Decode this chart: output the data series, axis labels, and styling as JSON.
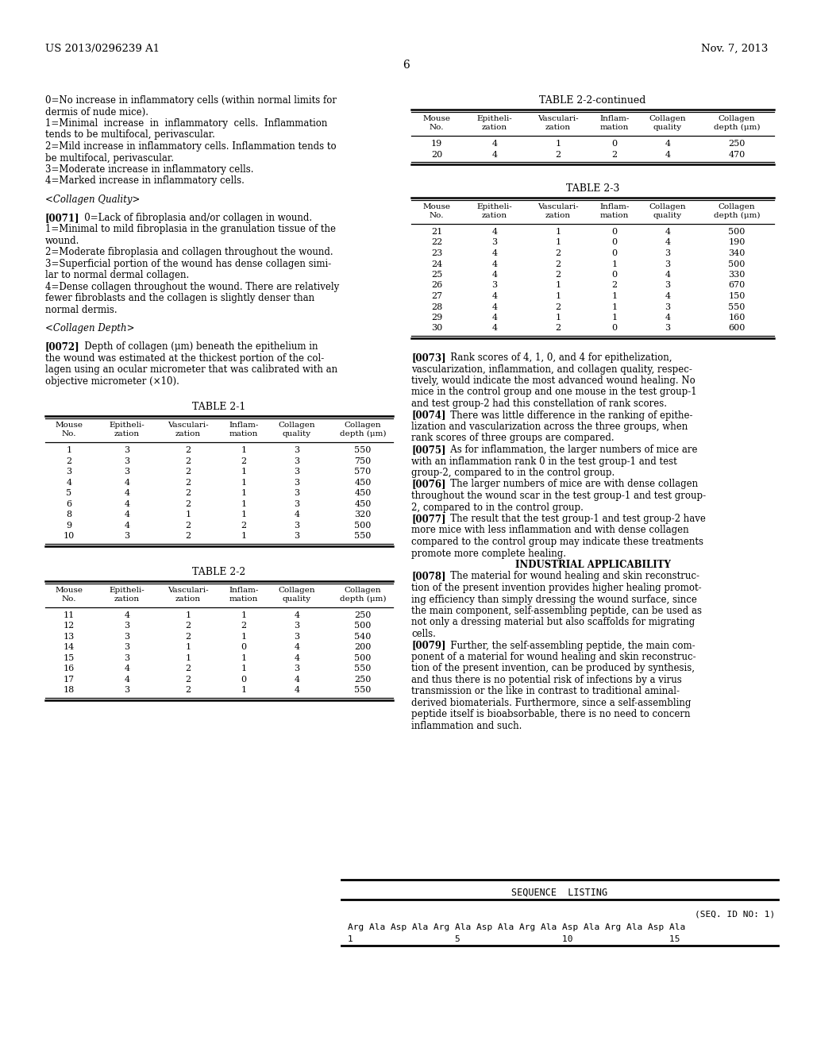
{
  "page_header_left": "US 2013/0296239 A1",
  "page_header_right": "Nov. 7, 2013",
  "page_number": "6",
  "bg_color": "#ffffff",
  "left_column_text": [
    {
      "text": "0=No increase in inflammatory cells (within normal limits for",
      "type": "normal"
    },
    {
      "text": "dermis of nude mice).",
      "type": "normal"
    },
    {
      "text": "1=Minimal  increase  in  inflammatory  cells.  Inflammation",
      "type": "normal"
    },
    {
      "text": "tends to be multifocal, perivascular.",
      "type": "normal"
    },
    {
      "text": "2=Mild increase in inflammatory cells. Inflammation tends to",
      "type": "normal"
    },
    {
      "text": "be multifocal, perivascular.",
      "type": "normal"
    },
    {
      "text": "3=Moderate increase in inflammatory cells.",
      "type": "normal"
    },
    {
      "text": "4=Marked increase in inflammatory cells.",
      "type": "normal"
    },
    {
      "text": "",
      "type": "gap"
    },
    {
      "text": "<Collagen Quality>",
      "type": "italic"
    },
    {
      "text": "",
      "type": "gap"
    },
    {
      "text": "[0071]",
      "type": "bracket",
      "rest": "   0=Lack of fibroplasia and/or collagen in wound."
    },
    {
      "text": "1=Minimal to mild fibroplasia in the granulation tissue of the",
      "type": "normal"
    },
    {
      "text": "wound.",
      "type": "normal"
    },
    {
      "text": "2=Moderate fibroplasia and collagen throughout the wound.",
      "type": "normal"
    },
    {
      "text": "3=Superficial portion of the wound has dense collagen simi-",
      "type": "normal"
    },
    {
      "text": "lar to normal dermal collagen.",
      "type": "normal"
    },
    {
      "text": "4=Dense collagen throughout the wound. There are relatively",
      "type": "normal"
    },
    {
      "text": "fewer fibroblasts and the collagen is slightly denser than",
      "type": "normal"
    },
    {
      "text": "normal dermis.",
      "type": "normal"
    },
    {
      "text": "",
      "type": "gap"
    },
    {
      "text": "<Collagen Depth>",
      "type": "italic"
    },
    {
      "text": "",
      "type": "gap"
    },
    {
      "text": "[0072]",
      "type": "bracket",
      "rest": "   Depth of collagen (μm) beneath the epithelium in"
    },
    {
      "text": "the wound was estimated at the thickest portion of the col-",
      "type": "normal"
    },
    {
      "text": "lagen using an ocular micrometer that was calibrated with an",
      "type": "normal"
    },
    {
      "text": "objective micrometer (×10).",
      "type": "normal"
    }
  ],
  "right_column_paragraphs": [
    {
      "text": "[0073]",
      "type": "bracket",
      "rest": "   Rank scores of 4, 1, 0, and 4 for epithelization,"
    },
    {
      "text": "vascularization, inflammation, and collagen quality, respec-",
      "type": "normal"
    },
    {
      "text": "tively, would indicate the most advanced wound healing. No",
      "type": "normal"
    },
    {
      "text": "mice in the control group and one mouse in the test group-1",
      "type": "normal"
    },
    {
      "text": "and test group-2 had this constellation of rank scores.",
      "type": "normal"
    },
    {
      "text": "[0074]",
      "type": "bracket",
      "rest": "   There was little difference in the ranking of epithe-"
    },
    {
      "text": "lization and vascularization across the three groups, when",
      "type": "normal"
    },
    {
      "text": "rank scores of three groups are compared.",
      "type": "normal"
    },
    {
      "text": "[0075]",
      "type": "bracket",
      "rest": "   As for inflammation, the larger numbers of mice are"
    },
    {
      "text": "with an inflammation rank 0 in the test group-1 and test",
      "type": "normal"
    },
    {
      "text": "group-2, compared to in the control group.",
      "type": "normal"
    },
    {
      "text": "[0076]",
      "type": "bracket",
      "rest": "   The larger numbers of mice are with dense collagen"
    },
    {
      "text": "throughout the wound scar in the test group-1 and test group-",
      "type": "normal"
    },
    {
      "text": "2, compared to in the control group.",
      "type": "normal"
    },
    {
      "text": "[0077]",
      "type": "bracket",
      "rest": "   The result that the test group-1 and test group-2 have"
    },
    {
      "text": "more mice with less inflammation and with dense collagen",
      "type": "normal"
    },
    {
      "text": "compared to the control group may indicate these treatments",
      "type": "normal"
    },
    {
      "text": "promote more complete healing.",
      "type": "normal"
    },
    {
      "text": "INDUSTRIAL APPLICABILITY",
      "type": "center_bold"
    },
    {
      "text": "[0078]",
      "type": "bracket",
      "rest": "   The material for wound healing and skin reconstruc-"
    },
    {
      "text": "tion of the present invention provides higher healing promot-",
      "type": "normal"
    },
    {
      "text": "ing efficiency than simply dressing the wound surface, since",
      "type": "normal"
    },
    {
      "text": "the main component, self-assembling peptide, can be used as",
      "type": "normal"
    },
    {
      "text": "not only a dressing material but also scaffolds for migrating",
      "type": "normal"
    },
    {
      "text": "cells.",
      "type": "normal"
    },
    {
      "text": "[0079]",
      "type": "bracket",
      "rest": "   Further, the self-assembling peptide, the main com-"
    },
    {
      "text": "ponent of a material for wound healing and skin reconstruc-",
      "type": "normal"
    },
    {
      "text": "tion of the present invention, can be produced by synthesis,",
      "type": "normal"
    },
    {
      "text": "and thus there is no potential risk of infections by a virus",
      "type": "normal"
    },
    {
      "text": "transmission or the like in contrast to traditional aminal-",
      "type": "normal"
    },
    {
      "text": "derived biomaterials. Furthermore, since a self-assembling",
      "type": "normal"
    },
    {
      "text": "peptide itself is bioabsorbable, there is no need to concern",
      "type": "normal"
    },
    {
      "text": "inflammation and such.",
      "type": "normal"
    }
  ],
  "table_22_cont_title": "TABLE 2-2-continued",
  "table_22_cont_headers": [
    "Mouse\nNo.",
    "Epitheli-\nzation",
    "Vasculari-\nzation",
    "Inflam-\nmation",
    "Collagen\nquality",
    "Collagen\ndepth (μm)"
  ],
  "table_22_cont_data": [
    [
      19,
      4,
      1,
      0,
      4,
      250
    ],
    [
      20,
      4,
      2,
      2,
      4,
      470
    ]
  ],
  "table_23_title": "TABLE 2-3",
  "table_23_headers": [
    "Mouse\nNo.",
    "Epitheli-\nzation",
    "Vasculari-\nzation",
    "Inflam-\nmation",
    "Collagen\nquality",
    "Collagen\ndepth (μm)"
  ],
  "table_23_data": [
    [
      21,
      4,
      1,
      0,
      4,
      500
    ],
    [
      22,
      3,
      1,
      0,
      4,
      190
    ],
    [
      23,
      4,
      2,
      0,
      3,
      340
    ],
    [
      24,
      4,
      2,
      1,
      3,
      500
    ],
    [
      25,
      4,
      2,
      0,
      4,
      330
    ],
    [
      26,
      3,
      1,
      2,
      3,
      670
    ],
    [
      27,
      4,
      1,
      1,
      4,
      150
    ],
    [
      28,
      4,
      2,
      1,
      3,
      550
    ],
    [
      29,
      4,
      1,
      1,
      4,
      160
    ],
    [
      30,
      4,
      2,
      0,
      3,
      600
    ]
  ],
  "table_21_title": "TABLE 2-1",
  "table_21_headers": [
    "Mouse\nNo.",
    "Epitheli-\nzation",
    "Vasculari-\nzation",
    "Inflam-\nmation",
    "Collagen\nquality",
    "Collagen\ndepth (μm)"
  ],
  "table_21_data": [
    [
      1,
      3,
      2,
      1,
      3,
      550
    ],
    [
      2,
      3,
      2,
      2,
      3,
      750
    ],
    [
      3,
      3,
      2,
      1,
      3,
      570
    ],
    [
      4,
      4,
      2,
      1,
      3,
      450
    ],
    [
      5,
      4,
      2,
      1,
      3,
      450
    ],
    [
      6,
      4,
      2,
      1,
      3,
      450
    ],
    [
      8,
      4,
      1,
      1,
      4,
      320
    ],
    [
      9,
      4,
      2,
      2,
      3,
      500
    ],
    [
      10,
      3,
      2,
      1,
      3,
      550
    ]
  ],
  "table_22_title": "TABLE 2-2",
  "table_22_headers": [
    "Mouse\nNo.",
    "Epitheli-\nzation",
    "Vasculari-\nzation",
    "Inflam-\nmation",
    "Collagen\nquality",
    "Collagen\ndepth (μm)"
  ],
  "table_22_data": [
    [
      11,
      4,
      1,
      1,
      4,
      250
    ],
    [
      12,
      3,
      2,
      2,
      3,
      500
    ],
    [
      13,
      3,
      2,
      1,
      3,
      540
    ],
    [
      14,
      3,
      1,
      0,
      4,
      200
    ],
    [
      15,
      3,
      1,
      1,
      4,
      500
    ],
    [
      16,
      4,
      2,
      1,
      3,
      550
    ],
    [
      17,
      4,
      2,
      0,
      4,
      250
    ],
    [
      18,
      3,
      2,
      1,
      4,
      550
    ]
  ],
  "sequence_listing_title": "SEQUENCE  LISTING",
  "sequence_id": "(SEQ. ID NO: 1)",
  "sequence_data": "Arg Ala Asp Ala Arg Ala Asp Ala Arg Ala Asp Ala Arg Ala Asp Ala",
  "sequence_numbers": "1                   5                   10                  15"
}
